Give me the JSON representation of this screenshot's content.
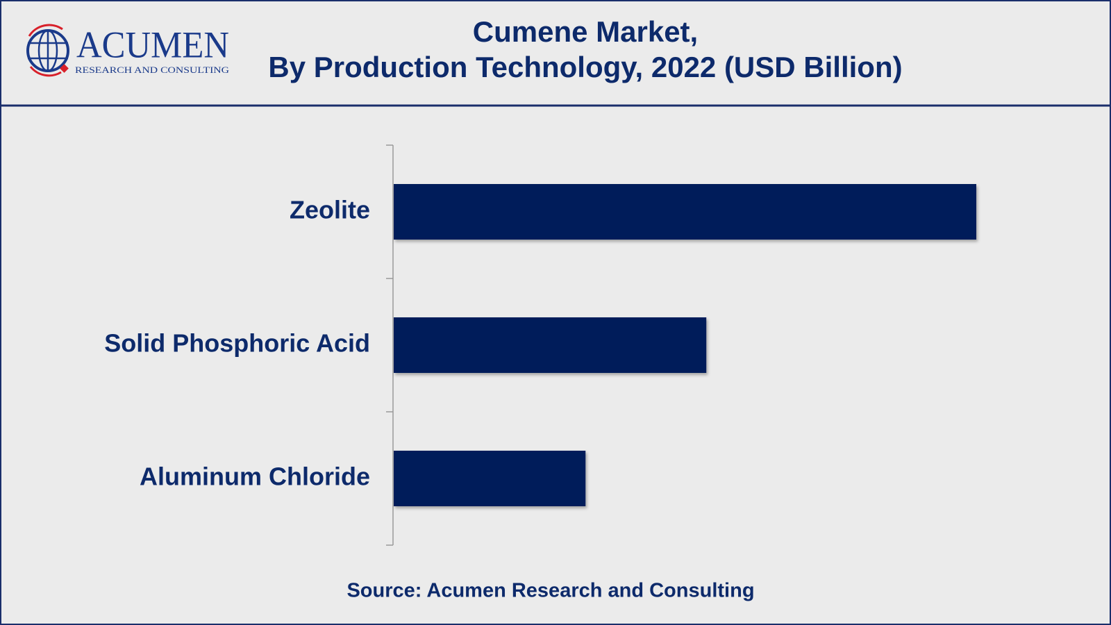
{
  "logo": {
    "name": "ACUMEN",
    "tagline": "RESEARCH AND CONSULTING"
  },
  "chart_data": {
    "type": "bar",
    "orientation": "horizontal",
    "title": [
      "Cumene Market,",
      "By Production Technology, 2022 (USD Billion)"
    ],
    "categories": [
      "Zeolite",
      "Solid Phosphoric Acid",
      "Aluminum Chloride"
    ],
    "values": [
      8.2,
      4.4,
      2.7
    ],
    "color": "#011e5a",
    "source": "Source: Acumen Research and Consulting"
  }
}
